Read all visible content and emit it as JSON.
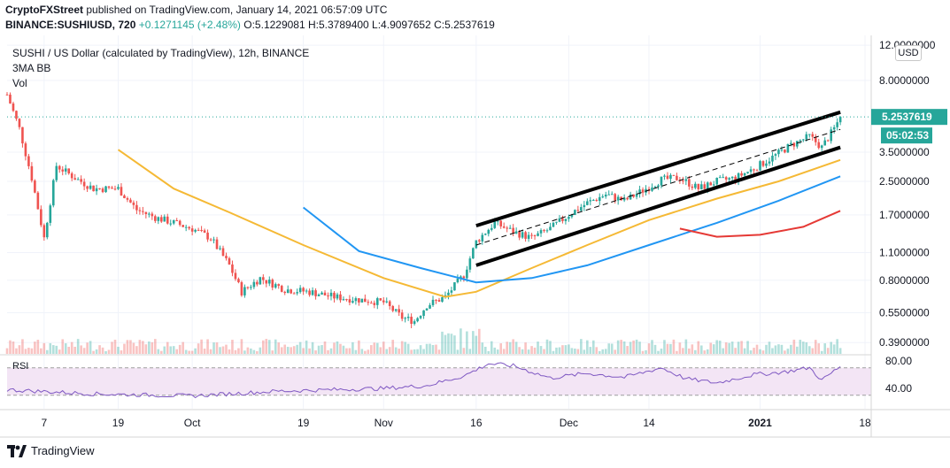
{
  "header": {
    "publisher": "CryptoFXStreet",
    "published": "published on TradingView.com, January 14, 2021 06:57:09 UTC",
    "symbol_line_prefix": "BINANCE:SUSHIUSD, 720",
    "change": "+0.1271145 (+2.48%)",
    "ohlc": "O:5.1229081 H:5.3789400 L:4.9097652 C:5.2537619"
  },
  "legend": {
    "title": "SUSHI / US Dollar (calculated by TradingView), 12h, BINANCE",
    "indicator": "3MA BB",
    "volume": "Vol"
  },
  "currency_button": "USD",
  "price_label": "5.2537619",
  "countdown_label": "05:02:53",
  "rsi_label": "RSI",
  "footer_brand": "TradingView",
  "colors": {
    "up": "#26a69a",
    "down": "#ef5350",
    "ma_fast": "#f5b935",
    "ma_mid": "#2196f3",
    "ma_slow": "#e53935",
    "rsi_line": "#7e57c2",
    "rsi_band": "#f3e5f5",
    "channel": "#000000"
  },
  "chart_data": {
    "type": "line",
    "title": "SUSHI / US Dollar (calculated by TradingView), 12h, BINANCE",
    "scale": "log",
    "x_tick_labels": [
      "7",
      "19",
      "Oct",
      "19",
      "Nov",
      "16",
      "Dec",
      "14",
      "2021",
      "18"
    ],
    "y_tick_labels": [
      "12.0000000",
      "8.0000000",
      "5.2537619",
      "3.5000000",
      "2.5000000",
      "1.7000000",
      "1.1000000",
      "0.8000000",
      "0.5500000",
      "0.3900000"
    ],
    "y_ticks": [
      12.0,
      8.0,
      3.5,
      2.5,
      1.7,
      1.1,
      0.8,
      0.55,
      0.39
    ],
    "last_price": 5.2537619,
    "approx_close": [
      [
        "Sep 1",
        6.8
      ],
      [
        "Sep 3",
        4.6
      ],
      [
        "Sep 5",
        2.6
      ],
      [
        "Sep 7",
        1.3
      ],
      [
        "Sep 9",
        3.0
      ],
      [
        "Sep 12",
        2.6
      ],
      [
        "Sep 15",
        2.3
      ],
      [
        "Sep 19",
        2.3
      ],
      [
        "Sep 22",
        1.8
      ],
      [
        "Sep 25",
        1.65
      ],
      [
        "Sep 28",
        1.55
      ],
      [
        "Oct 1",
        1.45
      ],
      [
        "Oct 4",
        1.3
      ],
      [
        "Oct 7",
        0.95
      ],
      [
        "Oct 9",
        0.7
      ],
      [
        "Oct 12",
        0.82
      ],
      [
        "Oct 16",
        0.72
      ],
      [
        "Oct 20",
        0.7
      ],
      [
        "Oct 24",
        0.66
      ],
      [
        "Oct 28",
        0.64
      ],
      [
        "Nov 1",
        0.62
      ],
      [
        "Nov 4",
        0.52
      ],
      [
        "Nov 6",
        0.5
      ],
      [
        "Nov 8",
        0.6
      ],
      [
        "Nov 11",
        0.66
      ],
      [
        "Nov 14",
        0.85
      ],
      [
        "Nov 16",
        1.25
      ],
      [
        "Nov 19",
        1.55
      ],
      [
        "Nov 22",
        1.4
      ],
      [
        "Nov 25",
        1.3
      ],
      [
        "Nov 28",
        1.45
      ],
      [
        "Dec 1",
        1.7
      ],
      [
        "Dec 4",
        1.95
      ],
      [
        "Dec 7",
        2.15
      ],
      [
        "Dec 10",
        2.0
      ],
      [
        "Dec 13",
        2.25
      ],
      [
        "Dec 16",
        2.55
      ],
      [
        "Dec 19",
        2.6
      ],
      [
        "Dec 22",
        2.3
      ],
      [
        "Dec 25",
        2.5
      ],
      [
        "Dec 28",
        2.6
      ],
      [
        "Dec 31",
        2.9
      ],
      [
        "Jan 3",
        3.3
      ],
      [
        "Jan 6",
        3.8
      ],
      [
        "Jan 9",
        4.2
      ],
      [
        "Jan 11",
        3.7
      ],
      [
        "Jan 13",
        4.6
      ],
      [
        "Jan 14",
        5.2537619
      ]
    ],
    "ma_fast": [
      [
        "Sep 19",
        3.6
      ],
      [
        "Sep 28",
        2.3
      ],
      [
        "Oct 7",
        1.75
      ],
      [
        "Oct 19",
        1.2
      ],
      [
        "Nov 1",
        0.82
      ],
      [
        "Nov 11",
        0.66
      ],
      [
        "Nov 16",
        0.7
      ],
      [
        "Nov 25",
        0.92
      ],
      [
        "Dec 4",
        1.2
      ],
      [
        "Dec 14",
        1.6
      ],
      [
        "Dec 25",
        2.05
      ],
      [
        "Jan 4",
        2.5
      ],
      [
        "Jan 14",
        3.2
      ]
    ],
    "ma_mid": [
      [
        "Oct 19",
        1.85
      ],
      [
        "Oct 28",
        1.12
      ],
      [
        "Nov 7",
        0.92
      ],
      [
        "Nov 16",
        0.78
      ],
      [
        "Nov 25",
        0.82
      ],
      [
        "Dec 4",
        0.95
      ],
      [
        "Dec 14",
        1.2
      ],
      [
        "Dec 25",
        1.55
      ],
      [
        "Jan 4",
        2.0
      ],
      [
        "Jan 14",
        2.65
      ]
    ],
    "ma_slow": [
      [
        "Dec 19",
        1.45
      ],
      [
        "Dec 25",
        1.32
      ],
      [
        "Jan 1",
        1.35
      ],
      [
        "Jan 8",
        1.48
      ],
      [
        "Jan 14",
        1.78
      ]
    ],
    "channel_upper": [
      [
        "Nov 16",
        1.5
      ],
      [
        "Jan 14",
        5.55
      ]
    ],
    "channel_lower": [
      [
        "Nov 16",
        0.95
      ],
      [
        "Jan 14",
        3.7
      ]
    ],
    "channel_mid": [
      [
        "Nov 16",
        1.2
      ],
      [
        "Jan 14",
        4.55
      ]
    ],
    "rsi_ticks": [
      80,
      40
    ],
    "rsi_band": [
      70,
      30
    ],
    "rsi": [
      [
        "Sep 1",
        38
      ],
      [
        "Sep 15",
        32
      ],
      [
        "Oct 1",
        29
      ],
      [
        "Oct 15",
        36
      ],
      [
        "Nov 1",
        40
      ],
      [
        "Nov 8",
        44
      ],
      [
        "Nov 14",
        58
      ],
      [
        "Nov 18",
        76
      ],
      [
        "Nov 22",
        73
      ],
      [
        "Nov 28",
        55
      ],
      [
        "Dec 4",
        62
      ],
      [
        "Dec 10",
        56
      ],
      [
        "Dec 16",
        70
      ],
      [
        "Dec 20",
        54
      ],
      [
        "Dec 25",
        48
      ],
      [
        "Dec 31",
        60
      ],
      [
        "Jan 5",
        64
      ],
      [
        "Jan 9",
        70
      ],
      [
        "Jan 11",
        52
      ],
      [
        "Jan 14",
        72
      ]
    ]
  }
}
